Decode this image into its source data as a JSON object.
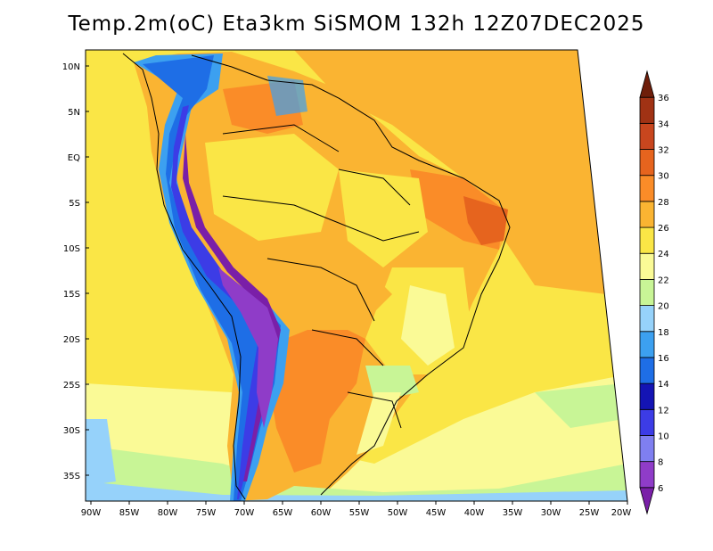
{
  "title": "Temp.2m(oC) Eta3km SiSMOM 132h 12Z07DEC2025",
  "map": {
    "lat_labels": [
      "10N",
      "5N",
      "EQ",
      "5S",
      "10S",
      "15S",
      "20S",
      "25S",
      "30S",
      "35S"
    ],
    "lon_labels": [
      "90W",
      "85W",
      "80W",
      "75W",
      "70W",
      "65W",
      "60W",
      "55W",
      "50W",
      "45W",
      "40W",
      "35W",
      "30W",
      "25W",
      "20W"
    ]
  },
  "colorbar": {
    "levels": [
      "6",
      "8",
      "10",
      "12",
      "14",
      "16",
      "18",
      "20",
      "22",
      "24",
      "26",
      "28",
      "30",
      "32",
      "34",
      "36"
    ],
    "colors": [
      "#7a1fa8",
      "#8f3cc8",
      "#7f7ff0",
      "#3c3ce6",
      "#1414b4",
      "#1e6ee6",
      "#3ca0f0",
      "#96d2fa",
      "#c8f596",
      "#fafa96",
      "#fae646",
      "#fab432",
      "#fa8c28",
      "#e6641e",
      "#c8461e",
      "#a03214",
      "#6e1e0a"
    ]
  }
}
